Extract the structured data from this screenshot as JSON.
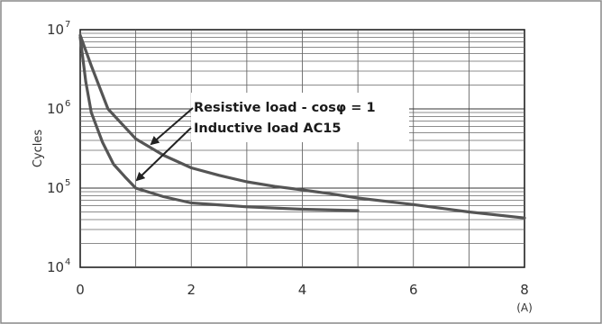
{
  "chart_data": {
    "type": "line",
    "ylabel": "Cycles",
    "xunit": "(A)",
    "x_ticks": [
      0,
      2,
      4,
      6,
      8
    ],
    "y_ticks": [
      {
        "base": "10",
        "exp": "4",
        "value": 10000
      },
      {
        "base": "10",
        "exp": "5",
        "value": 100000
      },
      {
        "base": "10",
        "exp": "6",
        "value": 1000000
      },
      {
        "base": "10",
        "exp": "7",
        "value": 10000000
      }
    ],
    "xlim": [
      0,
      8
    ],
    "ylim": [
      10000,
      10000000
    ],
    "yscale": "log",
    "grid": true,
    "annotations": [
      "Resistive load - cosφ = 1",
      "Inductive load AC15"
    ],
    "series": [
      {
        "x": [
          0,
          0.2,
          0.5,
          1,
          1.5,
          2,
          2.5,
          3,
          3.5,
          4,
          4.5,
          5,
          6,
          7,
          8
        ],
        "y": [
          8500000,
          3500000,
          1000000,
          420000,
          260000,
          180000,
          145000,
          120000,
          105000,
          95000,
          85000,
          75000,
          62000,
          50000,
          42000
        ],
        "color": "#555555"
      },
      {
        "x": [
          0,
          0.1,
          0.2,
          0.4,
          0.6,
          0.8,
          1,
          1.5,
          2,
          3,
          4,
          5
        ],
        "y": [
          8000000,
          2200000,
          900000,
          380000,
          200000,
          140000,
          100000,
          78000,
          65000,
          58000,
          54000,
          52000
        ],
        "color": "#555555"
      }
    ]
  }
}
